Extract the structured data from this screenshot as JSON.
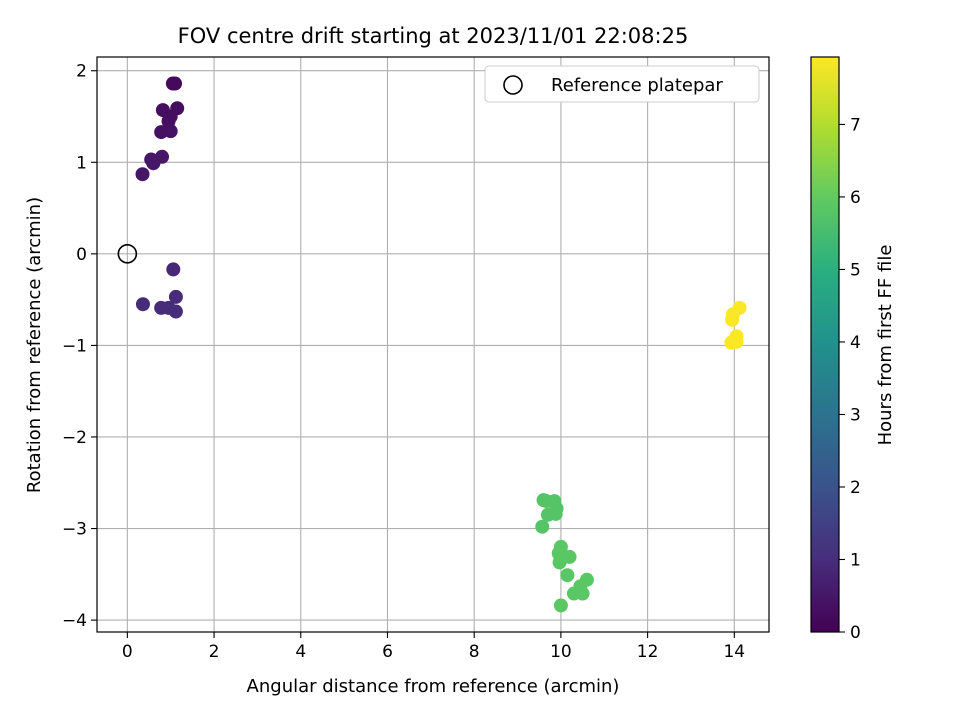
{
  "chart_data": {
    "type": "scatter",
    "title": "FOV centre drift starting at 2023/11/01 22:08:25",
    "xlabel": "Angular distance from reference (arcmin)",
    "ylabel": "Rotation from reference (arcmin)",
    "xlim": [
      -0.7,
      14.8
    ],
    "ylim": [
      -4.13,
      2.15
    ],
    "xticks": [
      0,
      2,
      4,
      6,
      8,
      10,
      12,
      14
    ],
    "yticks": [
      -4,
      -3,
      -2,
      -1,
      0,
      1,
      2
    ],
    "grid": true,
    "legend": {
      "placement": "top-right",
      "entries": [
        "Reference platepar"
      ]
    },
    "reference": {
      "label": "Reference platepar",
      "x": 0,
      "y": 0
    },
    "colorbar": {
      "label": "Hours from first FF file",
      "range": [
        0,
        7.93
      ],
      "ticks": [
        0,
        1,
        2,
        3,
        4,
        5,
        6,
        7
      ],
      "colormap": "viridis"
    },
    "points": [
      {
        "x": 1.05,
        "y": 1.86,
        "c": 0.2
      },
      {
        "x": 1.1,
        "y": 1.86,
        "c": 0.2
      },
      {
        "x": 0.82,
        "y": 1.57,
        "c": 0.3
      },
      {
        "x": 1.15,
        "y": 1.59,
        "c": 0.3
      },
      {
        "x": 0.95,
        "y": 1.45,
        "c": 0.3
      },
      {
        "x": 1.0,
        "y": 1.5,
        "c": 0.3
      },
      {
        "x": 0.78,
        "y": 1.33,
        "c": 0.4
      },
      {
        "x": 1.0,
        "y": 1.34,
        "c": 0.4
      },
      {
        "x": 0.8,
        "y": 1.06,
        "c": 0.5
      },
      {
        "x": 0.55,
        "y": 1.03,
        "c": 0.5
      },
      {
        "x": 0.6,
        "y": 0.99,
        "c": 0.5
      },
      {
        "x": 0.35,
        "y": 0.87,
        "c": 0.5
      },
      {
        "x": 1.06,
        "y": -0.17,
        "c": 0.9
      },
      {
        "x": 1.12,
        "y": -0.47,
        "c": 1.0
      },
      {
        "x": 0.36,
        "y": -0.55,
        "c": 1.0
      },
      {
        "x": 0.78,
        "y": -0.59,
        "c": 1.0
      },
      {
        "x": 0.95,
        "y": -0.59,
        "c": 1.0
      },
      {
        "x": 1.12,
        "y": -0.63,
        "c": 1.0
      },
      {
        "x": 9.6,
        "y": -2.69,
        "c": 5.8
      },
      {
        "x": 9.67,
        "y": -2.7,
        "c": 5.8
      },
      {
        "x": 9.85,
        "y": -2.7,
        "c": 5.8
      },
      {
        "x": 9.9,
        "y": -2.78,
        "c": 5.8
      },
      {
        "x": 9.7,
        "y": -2.85,
        "c": 5.8
      },
      {
        "x": 9.88,
        "y": -2.84,
        "c": 5.8
      },
      {
        "x": 9.57,
        "y": -2.98,
        "c": 5.8
      },
      {
        "x": 10.0,
        "y": -3.2,
        "c": 5.9
      },
      {
        "x": 9.95,
        "y": -3.27,
        "c": 5.9
      },
      {
        "x": 10.05,
        "y": -3.3,
        "c": 5.9
      },
      {
        "x": 10.2,
        "y": -3.31,
        "c": 5.9
      },
      {
        "x": 9.97,
        "y": -3.37,
        "c": 5.9
      },
      {
        "x": 10.15,
        "y": -3.51,
        "c": 5.9
      },
      {
        "x": 10.6,
        "y": -3.56,
        "c": 5.9
      },
      {
        "x": 10.45,
        "y": -3.63,
        "c": 5.9
      },
      {
        "x": 10.3,
        "y": -3.71,
        "c": 5.9
      },
      {
        "x": 10.5,
        "y": -3.71,
        "c": 5.9
      },
      {
        "x": 10.0,
        "y": -3.84,
        "c": 5.9
      },
      {
        "x": 14.12,
        "y": -0.59,
        "c": 7.9
      },
      {
        "x": 13.97,
        "y": -0.66,
        "c": 7.9
      },
      {
        "x": 13.95,
        "y": -0.72,
        "c": 7.9
      },
      {
        "x": 14.05,
        "y": -0.9,
        "c": 7.9
      },
      {
        "x": 13.93,
        "y": -0.97,
        "c": 7.9
      },
      {
        "x": 14.05,
        "y": -0.96,
        "c": 7.9
      }
    ]
  }
}
